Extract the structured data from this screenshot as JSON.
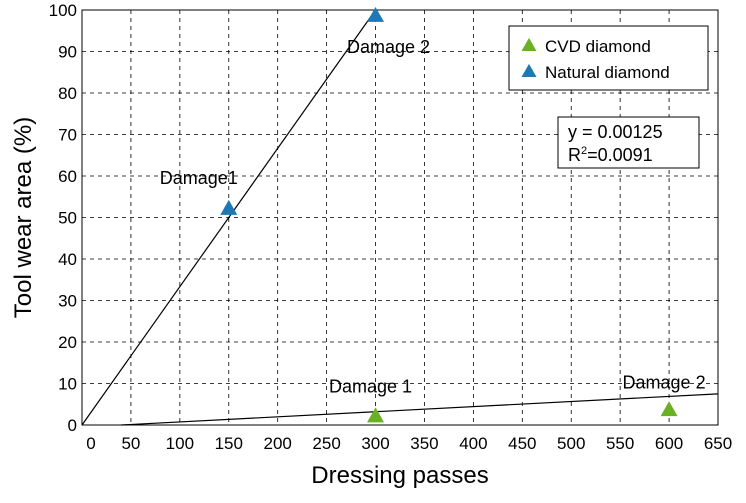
{
  "chart_data": {
    "type": "scatter",
    "xlabel": "Dressing passes",
    "ylabel": "Tool wear area (%)",
    "xlim": [
      0,
      650
    ],
    "ylim": [
      0,
      100
    ],
    "x_ticks": [
      "0",
      "50",
      "100",
      "150",
      "200",
      "250",
      "300",
      "350",
      "400",
      "450",
      "500",
      "550",
      "600",
      "650"
    ],
    "y_ticks": [
      "0",
      "10",
      "20",
      "30",
      "40",
      "50",
      "60",
      "70",
      "80",
      "90",
      "100"
    ],
    "grid": true,
    "legend_position": "top-right",
    "series": [
      {
        "name": "CVD diamond",
        "color": "#6ab023",
        "marker": "triangle-up",
        "points": [
          {
            "x": 300,
            "y": 2,
            "label": "Damage 1"
          },
          {
            "x": 600,
            "y": 3.5,
            "label": "Damage 2"
          }
        ]
      },
      {
        "name": "Natural diamond",
        "color": "#1f77b4",
        "marker": "triangle-up",
        "points": [
          {
            "x": 150,
            "y": 52,
            "label": "Damage1"
          },
          {
            "x": 300,
            "y": 98.5,
            "label": "Damage 2"
          }
        ]
      }
    ],
    "trend_lines": [
      {
        "series": "Natural diamond",
        "x": [
          0,
          300
        ],
        "y": [
          0,
          100
        ]
      },
      {
        "series": "CVD diamond",
        "x": [
          40,
          650
        ],
        "y": [
          0,
          7.5
        ]
      }
    ],
    "equation_box": {
      "line1": "y = 0.00125",
      "line2_prefix": "R",
      "line2_sup": "2",
      "line2_suffix": "=0.0091"
    }
  }
}
